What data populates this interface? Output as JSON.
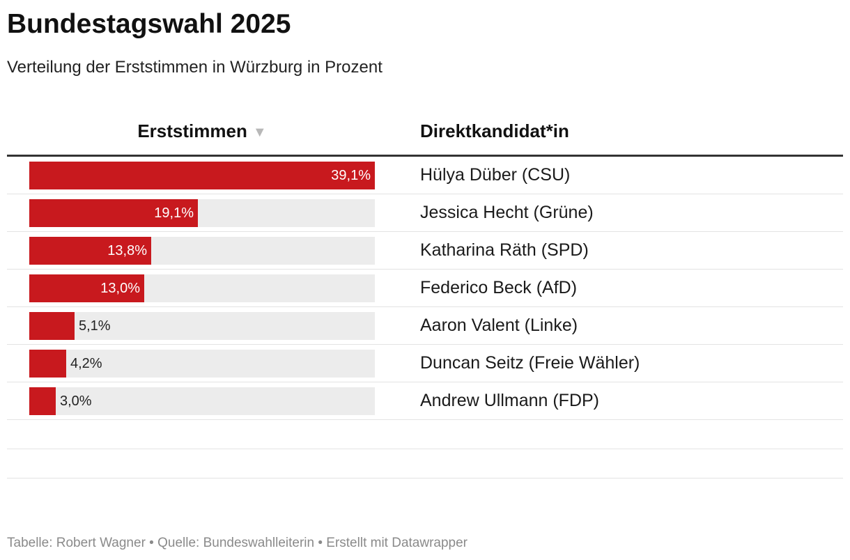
{
  "title": "Bundestagswahl 2025",
  "subtitle": "Verteilung der Erststimmen in Würzburg in Prozent",
  "footer": "Tabelle: Robert Wagner • Quelle: Bundeswahlleiterin • Erstellt mit Datawrapper",
  "colors": {
    "bar": "#c8191e",
    "track": "#ececec"
  },
  "chart_data": {
    "type": "bar",
    "orientation": "horizontal",
    "columns": {
      "votes": "Erststimmen",
      "candidate": "Direktkandidat*in"
    },
    "sort": "descending",
    "xlim": [
      0,
      39.1
    ],
    "unit": "%",
    "rows": [
      {
        "value": 39.1,
        "label": "39,1%",
        "candidate": "Hülya Düber (CSU)"
      },
      {
        "value": 19.1,
        "label": "19,1%",
        "candidate": "Jessica Hecht (Grüne)"
      },
      {
        "value": 13.8,
        "label": "13,8%",
        "candidate": "Katharina Räth (SPD)"
      },
      {
        "value": 13.0,
        "label": "13,0%",
        "candidate": "Federico Beck (AfD)"
      },
      {
        "value": 5.1,
        "label": "5,1%",
        "candidate": "Aaron Valent (Linke)"
      },
      {
        "value": 4.2,
        "label": "4,2%",
        "candidate": "Duncan Seitz (Freie Wähler)"
      },
      {
        "value": 3.0,
        "label": "3,0%",
        "candidate": "Andrew Ullmann (FDP)"
      }
    ]
  }
}
